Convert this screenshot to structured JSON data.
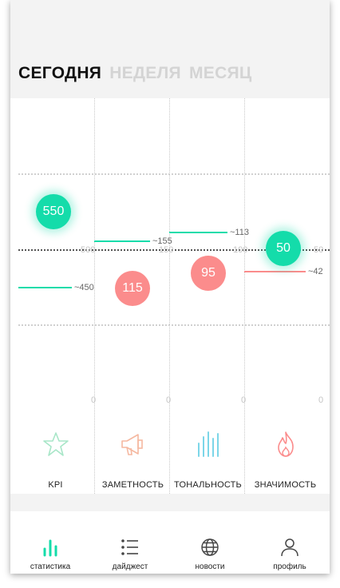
{
  "tabs": [
    {
      "label": "СЕГОДНЯ",
      "active": true
    },
    {
      "label": "НЕДЕЛЯ",
      "active": false
    },
    {
      "label": "МЕСЯЦ",
      "active": false
    }
  ],
  "colors": {
    "green": "#14dcaa",
    "red": "#fb8c8c",
    "blue": "#7cd6e8",
    "star": "#a8e6c8",
    "megaphone": "#f5b8a0"
  },
  "axis": {
    "mid_values": [
      "500",
      "150",
      "100",
      "50"
    ],
    "bottom_values": [
      "0",
      "0",
      "0",
      "0"
    ]
  },
  "metrics": [
    {
      "bubble": "550",
      "bubble_color": "green",
      "line_label": "~450",
      "line_color": "green"
    },
    {
      "bubble": "115",
      "bubble_color": "red",
      "line_label": "~155",
      "line_color": "green"
    },
    {
      "bubble": "95",
      "bubble_color": "red",
      "line_label": "~113",
      "line_color": "green"
    },
    {
      "bubble": "50",
      "bubble_color": "green",
      "line_label": "~42",
      "line_color": "red"
    }
  ],
  "categories": [
    {
      "label": "KPI",
      "icon": "star-icon"
    },
    {
      "label": "ЗАМЕТНОСТЬ",
      "icon": "megaphone-icon"
    },
    {
      "label": "ТОНАЛЬНОСТЬ",
      "icon": "bars-icon"
    },
    {
      "label": "ЗНАЧИМОСТЬ",
      "icon": "flame-icon"
    }
  ],
  "nav": [
    {
      "label": "статистика",
      "icon": "stats-icon"
    },
    {
      "label": "дайджест",
      "icon": "list-icon"
    },
    {
      "label": "новости",
      "icon": "globe-icon"
    },
    {
      "label": "профиль",
      "icon": "user-icon"
    }
  ]
}
